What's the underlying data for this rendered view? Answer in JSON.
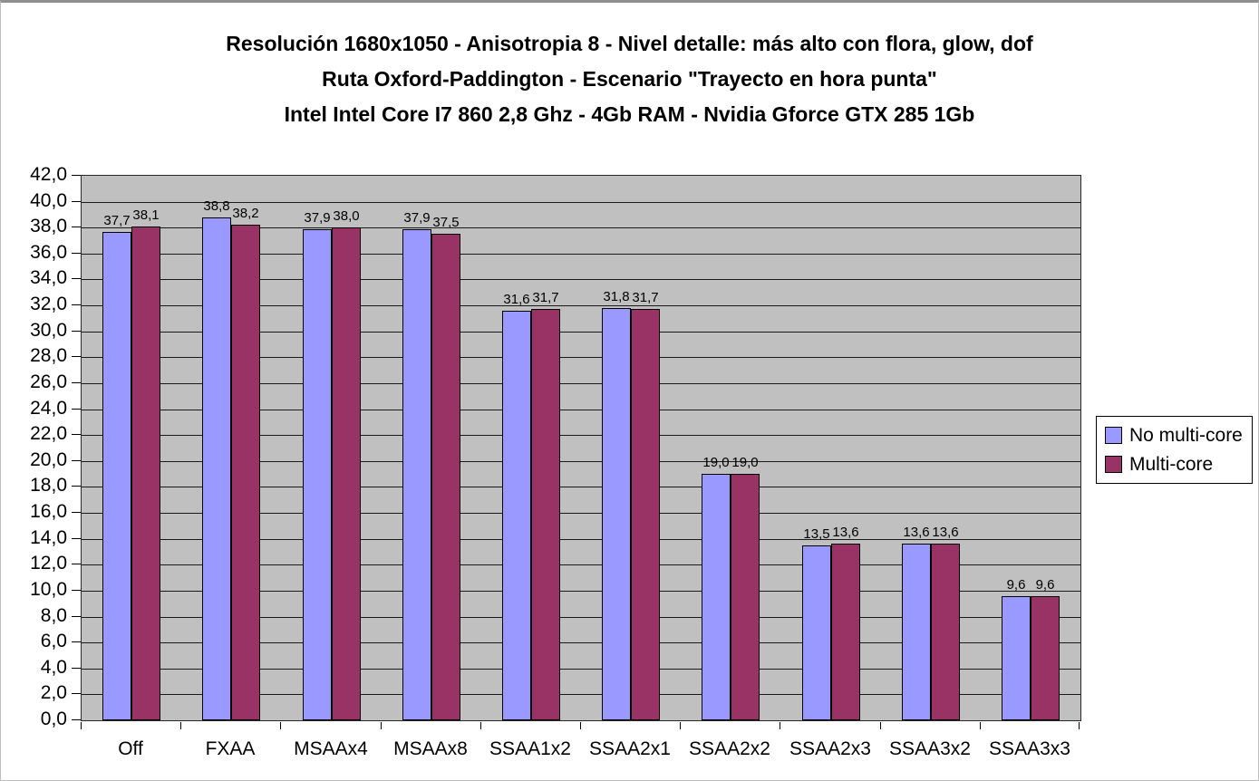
{
  "title": {
    "line1": "Resolución 1680x1050 - Anisotropia 8 - Nivel detalle: más alto con flora, glow, dof",
    "line2": "Ruta Oxford-Paddington - Escenario \"Trayecto en hora punta\"",
    "line3": "Intel Intel Core I7 860 2,8 Ghz - 4Gb RAM - Nvidia Gforce GTX 285 1Gb"
  },
  "chart_data": {
    "type": "bar",
    "title": "Resolución 1680x1050 - Anisotropia 8 - Nivel detalle: más alto con flora, glow, dof | Ruta Oxford-Paddington - Escenario \"Trayecto en hora punta\" | Intel Intel Core I7 860 2,8 Ghz - 4Gb RAM - Nvidia Gforce GTX 285 1Gb",
    "categories": [
      "Off",
      "FXAA",
      "MSAAx4",
      "MSAAx8",
      "SSAA1x2",
      "SSAA2x1",
      "SSAA2x2",
      "SSAA2x3",
      "SSAA3x2",
      "SSAA3x3"
    ],
    "series": [
      {
        "name": "No multi-core",
        "color": "#9999FF",
        "values": [
          37.7,
          38.8,
          37.9,
          37.9,
          31.6,
          31.8,
          19.0,
          13.5,
          13.6,
          9.6
        ]
      },
      {
        "name": "Multi-core",
        "color": "#993366",
        "values": [
          38.1,
          38.2,
          38.0,
          37.5,
          31.7,
          31.7,
          19.0,
          13.6,
          13.6,
          9.6
        ]
      }
    ],
    "xlabel": "",
    "ylabel": "",
    "ylim": [
      0,
      42
    ],
    "ytick_step": 2,
    "ytick_labels": [
      "0,0",
      "2,0",
      "4,0",
      "6,0",
      "8,0",
      "10,0",
      "12,0",
      "14,0",
      "16,0",
      "18,0",
      "20,0",
      "22,0",
      "24,0",
      "26,0",
      "28,0",
      "30,0",
      "32,0",
      "34,0",
      "36,0",
      "38,0",
      "40,0",
      "42,0"
    ],
    "decimal_separator": ",",
    "data_labels_visible": true,
    "grid": true,
    "gridline_color": "#1a1a1a",
    "plot_bg": "#C0C0C0",
    "legend_position": "right"
  }
}
